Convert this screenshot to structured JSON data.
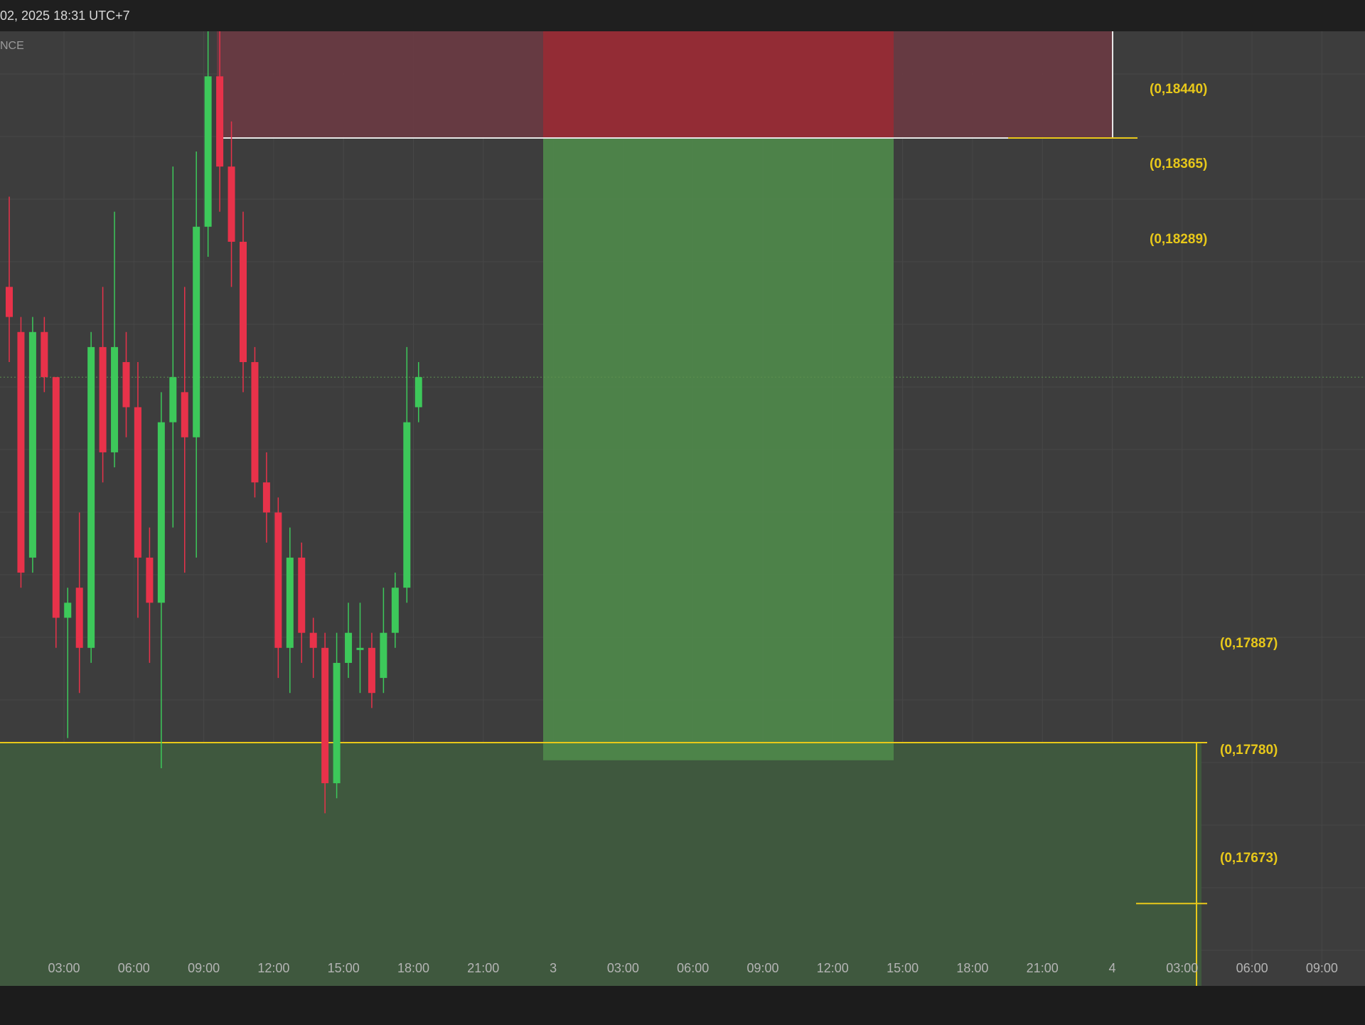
{
  "header": {
    "timestamp": "02, 2025 18:31 UTC+7",
    "source": "NCE"
  },
  "colors": {
    "background": "#3d3d3d",
    "up_candle": "#3dc85a",
    "down_candle": "#e8324a",
    "level_line": "#e8c81a",
    "stop_zone": "#9b2a33",
    "target_zone": "#4f8a4a",
    "supply_zone": "#6a3a42",
    "demand_zone": "#3f5a3e"
  },
  "chart_data": {
    "type": "candlestick",
    "title": "",
    "xlabel": "",
    "ylabel": "",
    "ylim": [
      0.1756,
      0.1856
    ],
    "x_ticks": [
      "03:00",
      "06:00",
      "09:00",
      "12:00",
      "15:00",
      "18:00",
      "21:00",
      "3",
      "03:00",
      "06:00",
      "09:00",
      "12:00",
      "15:00",
      "18:00",
      "21:00",
      "4",
      "03:00",
      "06:00",
      "09:00"
    ],
    "price_labels": [
      "(0,18440)",
      "(0,18365)",
      "(0,18289)",
      "(0,17887)",
      "(0,17780)",
      "(0,17673)"
    ],
    "zones": [
      {
        "kind": "supply",
        "top": 0.1844,
        "mid": 0.18365,
        "bottom": 0.18289
      },
      {
        "kind": "demand",
        "top": 0.17887,
        "mid": 0.1778,
        "bottom": 0.17673
      }
    ],
    "position": {
      "stop_top": 0.18463,
      "entry": 0.18289,
      "target": 0.1788
    },
    "last_price": 0.1813,
    "candles": [
      {
        "o": 0.1819,
        "h": 0.1825,
        "l": 0.1814,
        "c": 0.1817
      },
      {
        "o": 0.1816,
        "h": 0.1817,
        "l": 0.1799,
        "c": 0.18
      },
      {
        "o": 0.1801,
        "h": 0.1817,
        "l": 0.18,
        "c": 0.1816
      },
      {
        "o": 0.1816,
        "h": 0.1817,
        "l": 0.1812,
        "c": 0.1813
      },
      {
        "o": 0.1813,
        "h": 0.1813,
        "l": 0.1795,
        "c": 0.1797
      },
      {
        "o": 0.1797,
        "h": 0.1799,
        "l": 0.1789,
        "c": 0.1798
      },
      {
        "o": 0.1799,
        "h": 0.1804,
        "l": 0.1792,
        "c": 0.1795
      },
      {
        "o": 0.1795,
        "h": 0.1816,
        "l": 0.1794,
        "c": 0.1815
      },
      {
        "o": 0.1815,
        "h": 0.1819,
        "l": 0.1806,
        "c": 0.1808
      },
      {
        "o": 0.1808,
        "h": 0.1824,
        "l": 0.1807,
        "c": 0.1815
      },
      {
        "o": 0.1814,
        "h": 0.1816,
        "l": 0.1809,
        "c": 0.1811
      },
      {
        "o": 0.1811,
        "h": 0.1814,
        "l": 0.1797,
        "c": 0.1801
      },
      {
        "o": 0.1801,
        "h": 0.1803,
        "l": 0.1794,
        "c": 0.1798
      },
      {
        "o": 0.1798,
        "h": 0.1812,
        "l": 0.1787,
        "c": 0.181
      },
      {
        "o": 0.181,
        "h": 0.1827,
        "l": 0.1803,
        "c": 0.1813
      },
      {
        "o": 0.1812,
        "h": 0.1819,
        "l": 0.18,
        "c": 0.1809
      },
      {
        "o": 0.1809,
        "h": 0.1828,
        "l": 0.1801,
        "c": 0.1823
      },
      {
        "o": 0.1823,
        "h": 0.1842,
        "l": 0.1821,
        "c": 0.1833
      },
      {
        "o": 0.1833,
        "h": 0.1844,
        "l": 0.1824,
        "c": 0.1827
      },
      {
        "o": 0.1827,
        "h": 0.183,
        "l": 0.1819,
        "c": 0.1822
      },
      {
        "o": 0.1822,
        "h": 0.1824,
        "l": 0.1812,
        "c": 0.1814
      },
      {
        "o": 0.1814,
        "h": 0.1815,
        "l": 0.1805,
        "c": 0.1806
      },
      {
        "o": 0.1806,
        "h": 0.1808,
        "l": 0.1802,
        "c": 0.1804
      },
      {
        "o": 0.1804,
        "h": 0.1805,
        "l": 0.1793,
        "c": 0.1795
      },
      {
        "o": 0.1795,
        "h": 0.1803,
        "l": 0.1792,
        "c": 0.1801
      },
      {
        "o": 0.1801,
        "h": 0.1802,
        "l": 0.1794,
        "c": 0.1796
      },
      {
        "o": 0.1796,
        "h": 0.1797,
        "l": 0.1793,
        "c": 0.1795
      },
      {
        "o": 0.1795,
        "h": 0.1796,
        "l": 0.1784,
        "c": 0.1786
      },
      {
        "o": 0.1786,
        "h": 0.1796,
        "l": 0.1785,
        "c": 0.1794
      },
      {
        "o": 0.1794,
        "h": 0.1798,
        "l": 0.1793,
        "c": 0.1796
      },
      {
        "o": 0.1795,
        "h": 0.1798,
        "l": 0.1792,
        "c": 0.1795
      },
      {
        "o": 0.1795,
        "h": 0.1796,
        "l": 0.1791,
        "c": 0.1792
      },
      {
        "o": 0.1793,
        "h": 0.1799,
        "l": 0.1792,
        "c": 0.1796
      },
      {
        "o": 0.1796,
        "h": 0.18,
        "l": 0.1795,
        "c": 0.1799
      },
      {
        "o": 0.1799,
        "h": 0.1815,
        "l": 0.1798,
        "c": 0.181
      },
      {
        "o": 0.1811,
        "h": 0.1814,
        "l": 0.181,
        "c": 0.1813
      }
    ]
  }
}
